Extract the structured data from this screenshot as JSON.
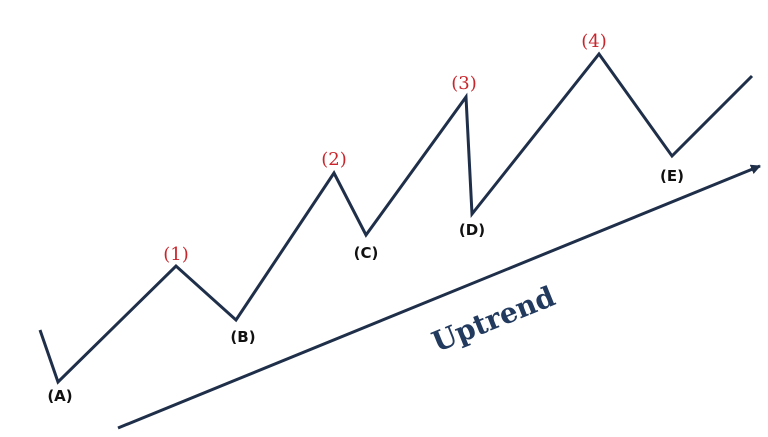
{
  "diagram": {
    "line_color": "#1f2f4a",
    "peak_color": "#c8262c",
    "trough_color": "#111111",
    "trend_text_color": "#223a5e",
    "peak_labels": [
      "(1)",
      "(2)",
      "(3)",
      "(4)"
    ],
    "trough_labels": [
      "(A)",
      "(B)",
      "(C)",
      "(D)",
      "(E)"
    ],
    "trend_label": "Uptrend"
  }
}
